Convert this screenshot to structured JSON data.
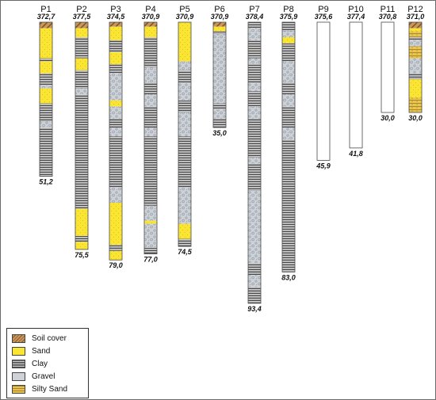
{
  "legend": [
    {
      "key": "soil",
      "label": "Soil cover"
    },
    {
      "key": "sand",
      "label": "Sand"
    },
    {
      "key": "clay",
      "label": "Clay"
    },
    {
      "key": "gravel",
      "label": "Gravel"
    },
    {
      "key": "silty",
      "label": "Silty Sand"
    }
  ],
  "wells": [
    {
      "name": "P1",
      "elevation": "372,7",
      "depth": "51,2",
      "depth_value": 51.2,
      "layers": [
        {
          "lith": "soil",
          "to": 2
        },
        {
          "lith": "sand",
          "to": 12
        },
        {
          "lith": "clay",
          "to": 13
        },
        {
          "lith": "sand",
          "to": 17
        },
        {
          "lith": "clay",
          "to": 21
        },
        {
          "lith": "gravel",
          "to": 22
        },
        {
          "lith": "sand",
          "to": 27
        },
        {
          "lith": "clay",
          "to": 33
        },
        {
          "lith": "gravel",
          "to": 35
        },
        {
          "lith": "clay",
          "to": 51.2
        }
      ]
    },
    {
      "name": "P2",
      "elevation": "377,5",
      "depth": "75,5",
      "depth_value": 75.5,
      "layers": [
        {
          "lith": "soil",
          "to": 2
        },
        {
          "lith": "sand",
          "to": 5
        },
        {
          "lith": "clay",
          "to": 12
        },
        {
          "lith": "sand",
          "to": 16
        },
        {
          "lith": "clay",
          "to": 22
        },
        {
          "lith": "gravel",
          "to": 24
        },
        {
          "lith": "clay",
          "to": 62
        },
        {
          "lith": "sand",
          "to": 71
        },
        {
          "lith": "clay",
          "to": 73
        },
        {
          "lith": "sand",
          "to": 75.5
        }
      ]
    },
    {
      "name": "P3",
      "elevation": "374,5",
      "depth": "79,0",
      "depth_value": 79.0,
      "layers": [
        {
          "lith": "soil",
          "to": 1.5
        },
        {
          "lith": "sand",
          "to": 6
        },
        {
          "lith": "clay",
          "to": 10
        },
        {
          "lith": "sand",
          "to": 14
        },
        {
          "lith": "clay",
          "to": 17
        },
        {
          "lith": "gravel",
          "to": 26
        },
        {
          "lith": "sand",
          "to": 28
        },
        {
          "lith": "gravel",
          "to": 32
        },
        {
          "lith": "clay",
          "to": 35
        },
        {
          "lith": "gravel",
          "to": 38
        },
        {
          "lith": "clay",
          "to": 55
        },
        {
          "lith": "gravel",
          "to": 60
        },
        {
          "lith": "sand",
          "to": 74
        },
        {
          "lith": "clay",
          "to": 76
        },
        {
          "lith": "sand",
          "to": 79
        }
      ]
    },
    {
      "name": "P4",
      "elevation": "370,9",
      "depth": "77,0",
      "depth_value": 77.0,
      "layers": [
        {
          "lith": "soil",
          "to": 1.5
        },
        {
          "lith": "sand",
          "to": 5
        },
        {
          "lith": "clay",
          "to": 15
        },
        {
          "lith": "gravel",
          "to": 20
        },
        {
          "lith": "clay",
          "to": 24
        },
        {
          "lith": "gravel",
          "to": 28
        },
        {
          "lith": "clay",
          "to": 35
        },
        {
          "lith": "gravel",
          "to": 38
        },
        {
          "lith": "clay",
          "to": 61
        },
        {
          "lith": "gravel",
          "to": 66
        },
        {
          "lith": "sand",
          "to": 67
        },
        {
          "lith": "gravel",
          "to": 75
        },
        {
          "lith": "clay",
          "to": 77
        }
      ]
    },
    {
      "name": "P5",
      "elevation": "370,9",
      "depth": "74,5",
      "depth_value": 74.5,
      "layers": [
        {
          "lith": "sand",
          "to": 13
        },
        {
          "lith": "gravel",
          "to": 16
        },
        {
          "lith": "clay",
          "to": 20
        },
        {
          "lith": "gravel",
          "to": 26
        },
        {
          "lith": "clay",
          "to": 30
        },
        {
          "lith": "gravel",
          "to": 38
        },
        {
          "lith": "clay",
          "to": 55
        },
        {
          "lith": "gravel",
          "to": 67
        },
        {
          "lith": "sand",
          "to": 72
        },
        {
          "lith": "clay",
          "to": 74.5
        }
      ]
    },
    {
      "name": "P6",
      "elevation": "370,9",
      "depth": "35,0",
      "depth_value": 35.0,
      "layers": [
        {
          "lith": "soil",
          "to": 1.5
        },
        {
          "lith": "sand",
          "to": 3
        },
        {
          "lith": "clay",
          "to": 4
        },
        {
          "lith": "gravel",
          "to": 27
        },
        {
          "lith": "clay",
          "to": 29
        },
        {
          "lith": "gravel",
          "to": 32
        },
        {
          "lith": "clay",
          "to": 35
        }
      ]
    },
    {
      "name": "P7",
      "elevation": "378,4",
      "depth": "93,4",
      "depth_value": 93.4,
      "layers": [
        {
          "lith": "clay",
          "to": 2
        },
        {
          "lith": "gravel",
          "to": 6
        },
        {
          "lith": "clay",
          "to": 12
        },
        {
          "lith": "gravel",
          "to": 14
        },
        {
          "lith": "clay",
          "to": 20
        },
        {
          "lith": "gravel",
          "to": 23
        },
        {
          "lith": "clay",
          "to": 28
        },
        {
          "lith": "gravel",
          "to": 32
        },
        {
          "lith": "clay",
          "to": 45
        },
        {
          "lith": "gravel",
          "to": 47
        },
        {
          "lith": "clay",
          "to": 56
        },
        {
          "lith": "gravel",
          "to": 80
        },
        {
          "lith": "clay",
          "to": 84
        },
        {
          "lith": "gravel",
          "to": 88
        },
        {
          "lith": "clay",
          "to": 93.4
        }
      ]
    },
    {
      "name": "P8",
      "elevation": "375,9",
      "depth": "83,0",
      "depth_value": 83.0,
      "layers": [
        {
          "lith": "clay",
          "to": 3
        },
        {
          "lith": "gravel",
          "to": 5
        },
        {
          "lith": "sand",
          "to": 7
        },
        {
          "lith": "clay",
          "to": 13
        },
        {
          "lith": "gravel",
          "to": 20
        },
        {
          "lith": "clay",
          "to": 24
        },
        {
          "lith": "gravel",
          "to": 28
        },
        {
          "lith": "clay",
          "to": 35
        },
        {
          "lith": "gravel",
          "to": 39
        },
        {
          "lith": "clay",
          "to": 83
        }
      ]
    },
    {
      "name": "P9",
      "elevation": "375,6",
      "depth": "45,9",
      "depth_value": 45.9,
      "layers": []
    },
    {
      "name": "P10",
      "elevation": "377,4",
      "depth": "41,8",
      "depth_value": 41.8,
      "layers": []
    },
    {
      "name": "P11",
      "elevation": "370,8",
      "depth": "30,0",
      "depth_value": 30.0,
      "layers": []
    },
    {
      "name": "P12",
      "elevation": "371,0",
      "depth": "30,0",
      "depth_value": 30.0,
      "layers": [
        {
          "lith": "soil",
          "to": 2
        },
        {
          "lith": "sand",
          "to": 3
        },
        {
          "lith": "silty",
          "to": 5
        },
        {
          "lith": "clay",
          "to": 6
        },
        {
          "lith": "gravel",
          "to": 8
        },
        {
          "lith": "silty",
          "to": 12
        },
        {
          "lith": "gravel",
          "to": 17
        },
        {
          "lith": "clay",
          "to": 19
        },
        {
          "lith": "sand",
          "to": 25
        },
        {
          "lith": "silty",
          "to": 30
        }
      ]
    }
  ]
}
